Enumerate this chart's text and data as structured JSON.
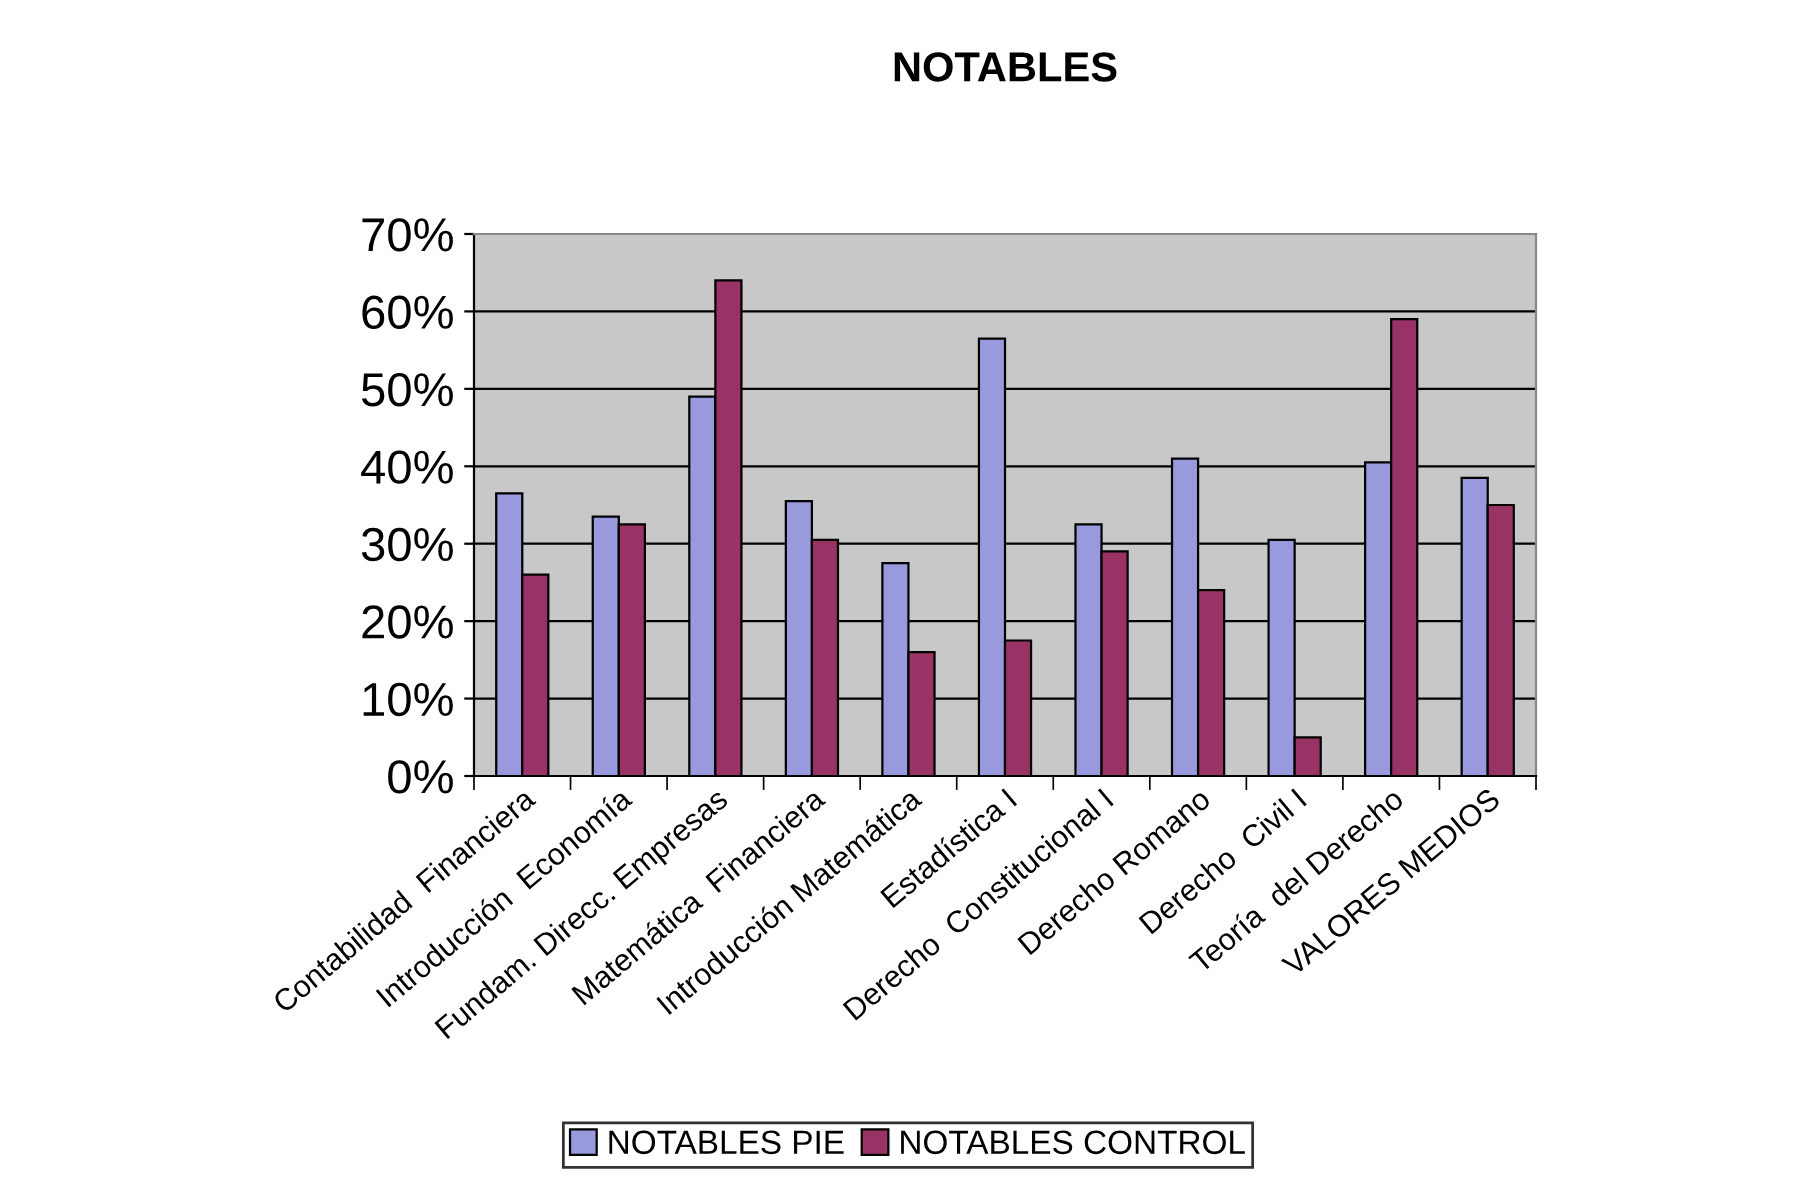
{
  "chart_data": {
    "type": "bar",
    "title": "NOTABLES",
    "categories": [
      "Contabilidad  Financiera",
      "Introducción  Economía",
      "Fundam. Direcc. Empresas",
      "Matemática  Financiera",
      "Introducción Matemática",
      "Estadística I",
      "Derecho  Constitucional I",
      "Derecho Romano",
      "Derecho  Civil I",
      "Teoría  del Derecho",
      "VALORES MEDIOS"
    ],
    "series": [
      {
        "name": "NOTABLES PIE",
        "color": "#9999dd",
        "values": [
          36.5,
          33.5,
          49,
          35.5,
          27.5,
          56.5,
          32.5,
          41,
          30.5,
          40.5,
          38.5
        ]
      },
      {
        "name": "NOTABLES CONTROL",
        "color": "#993366",
        "values": [
          26,
          32.5,
          64,
          30.5,
          16,
          17.5,
          29,
          24,
          5,
          59,
          35
        ]
      }
    ],
    "ylim": [
      0,
      70
    ],
    "yticks": [
      {
        "value": 0,
        "label": "0%"
      },
      {
        "value": 10,
        "label": "10%"
      },
      {
        "value": 20,
        "label": "20%"
      },
      {
        "value": 30,
        "label": "30%"
      },
      {
        "value": 40,
        "label": "40%"
      },
      {
        "value": 50,
        "label": "50%"
      },
      {
        "value": 60,
        "label": "60%"
      },
      {
        "value": 70,
        "label": "70%"
      }
    ],
    "grid": "y",
    "legend": "bottom"
  }
}
